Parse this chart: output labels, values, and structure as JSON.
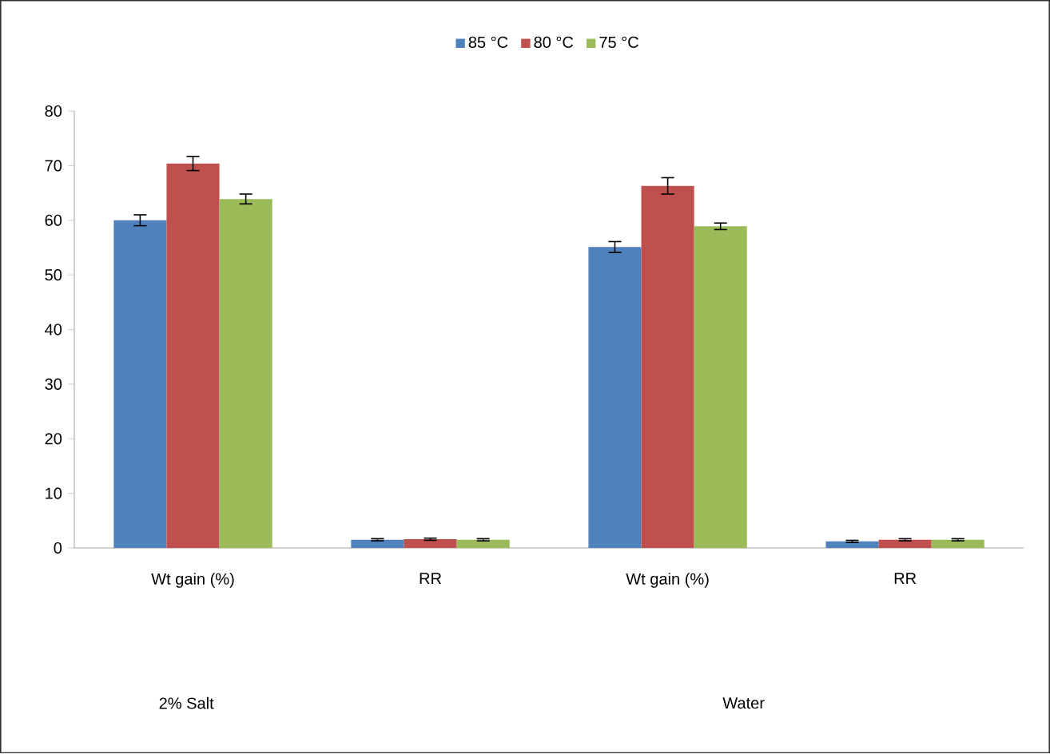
{
  "chart_data": {
    "type": "bar",
    "categories": [
      "Wt gain (%)",
      "RR",
      "Wt gain (%)",
      "RR"
    ],
    "series": [
      {
        "name": "85 °C",
        "color": "#4f81bd",
        "values": [
          60,
          1.5,
          55.1,
          1.2
        ],
        "errors": [
          1,
          0.2,
          1,
          0.2
        ]
      },
      {
        "name": "80 °C",
        "color": "#c0504d",
        "values": [
          70.4,
          1.6,
          66.3,
          1.5
        ],
        "errors": [
          1.3,
          0.2,
          1.5,
          0.2
        ]
      },
      {
        "name": "75 °C",
        "color": "#9bbb59",
        "values": [
          63.9,
          1.5,
          58.9,
          1.5
        ],
        "errors": [
          0.9,
          0.2,
          0.6,
          0.2
        ]
      }
    ],
    "ylim": [
      0,
      80
    ],
    "yticks": [
      0,
      10,
      20,
      30,
      40,
      50,
      60,
      70,
      80
    ],
    "legend": "top",
    "grid": false,
    "annotations": [
      "2% Salt",
      "Water"
    ]
  }
}
